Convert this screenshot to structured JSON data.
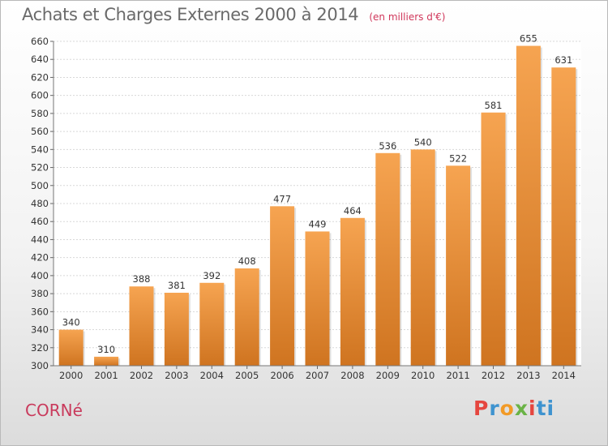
{
  "header": {
    "title": "Achats et Charges Externes 2000 à 2014",
    "unit": "(en milliers d'€)"
  },
  "footer": {
    "place": "CORNé",
    "brand_letters": [
      "P",
      "r",
      "o",
      "x",
      "i",
      "ti"
    ]
  },
  "colors": {
    "bar_light": "#f6a451",
    "bar_dark": "#cf7420",
    "grid": "#d8d8d8",
    "axis_text": "#333333",
    "place": "#c93a5c"
  },
  "chart_data": {
    "type": "bar",
    "title": "Achats et Charges Externes 2000 à 2014",
    "subtitle": "(en milliers d'€)",
    "xlabel": "",
    "ylabel": "",
    "categories": [
      "2000",
      "2001",
      "2002",
      "2003",
      "2004",
      "2005",
      "2006",
      "2007",
      "2008",
      "2009",
      "2010",
      "2011",
      "2012",
      "2013",
      "2014"
    ],
    "values": [
      340,
      310,
      388,
      381,
      392,
      408,
      477,
      449,
      464,
      536,
      540,
      522,
      581,
      655,
      631
    ],
    "ylim": [
      300,
      660
    ],
    "yticks": [
      300,
      320,
      340,
      360,
      380,
      400,
      420,
      440,
      460,
      480,
      500,
      520,
      540,
      560,
      580,
      600,
      620,
      640,
      660
    ],
    "grid": true,
    "legend": "none",
    "data_labels": true
  }
}
